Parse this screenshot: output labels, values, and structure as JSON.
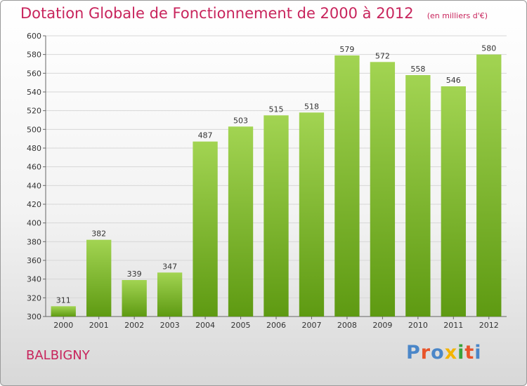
{
  "header": {
    "title": "Dotation Globale de Fonctionnement de 2000 à 2012",
    "subtitle": "(en milliers d'€)"
  },
  "footer": {
    "commune": "BALBIGNY",
    "logo_text": "Proxiti"
  },
  "colors": {
    "accent": "#c8245c",
    "bar_top": "#a2d452",
    "bar_bottom": "#5e9a12",
    "logo": [
      "#4a86c8",
      "#e8542a",
      "#4a86c8",
      "#f4b400",
      "#3aa33a",
      "#e8542a",
      "#4a86c8"
    ]
  },
  "chart_data": {
    "type": "bar",
    "categories": [
      "2000",
      "2001",
      "2002",
      "2003",
      "2004",
      "2005",
      "2006",
      "2007",
      "2008",
      "2009",
      "2010",
      "2011",
      "2012"
    ],
    "values": [
      311,
      382,
      339,
      347,
      487,
      503,
      515,
      518,
      579,
      572,
      558,
      546,
      580
    ],
    "yticks": [
      300,
      320,
      340,
      360,
      380,
      400,
      420,
      440,
      460,
      480,
      500,
      520,
      540,
      560,
      580,
      600
    ],
    "ylim": [
      300,
      600
    ],
    "grid": true,
    "legend": "none",
    "xlabel": "",
    "ylabel": ""
  }
}
